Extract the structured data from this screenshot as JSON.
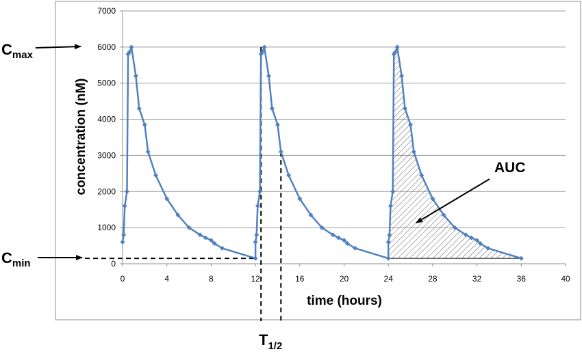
{
  "chart_data": {
    "type": "line",
    "xlabel": "time (hours)",
    "ylabel": "concentration (nM)",
    "xlim": [
      0,
      40
    ],
    "ylim": [
      0,
      7000
    ],
    "x_ticks": [
      0,
      4,
      8,
      12,
      16,
      20,
      24,
      28,
      32,
      36,
      40
    ],
    "y_ticks": [
      0,
      1000,
      2000,
      3000,
      4000,
      5000,
      6000,
      7000
    ],
    "grid": "horizontal",
    "line_color": "#4f81bd",
    "series": [
      {
        "x": [
          0,
          0.1,
          0.2,
          0.4,
          0.5,
          0.6,
          0.8,
          1.2,
          1.5,
          2,
          2.3,
          3,
          4,
          5,
          6,
          7,
          7.5,
          8,
          8.3,
          9,
          12,
          12,
          12.1,
          12.2,
          12.4,
          12.5,
          12.6,
          12.8,
          13.2,
          13.5,
          14,
          14.3,
          15,
          16,
          17,
          18,
          19,
          19.5,
          20,
          20.3,
          21,
          24,
          24,
          24.1,
          24.2,
          24.4,
          24.5,
          24.6,
          24.8,
          25.2,
          25.5,
          26,
          26.3,
          27,
          28,
          29,
          30,
          31,
          31.5,
          32,
          32.3,
          33,
          36
        ],
        "y": [
          600,
          800,
          1600,
          2000,
          5800,
          5850,
          6000,
          5200,
          4300,
          3850,
          3100,
          2450,
          1800,
          1350,
          1000,
          800,
          720,
          650,
          560,
          430,
          150,
          600,
          800,
          1600,
          2000,
          5800,
          5850,
          6000,
          5200,
          4300,
          3850,
          3100,
          2450,
          1800,
          1350,
          1000,
          800,
          720,
          650,
          560,
          430,
          150,
          600,
          800,
          1600,
          2000,
          5800,
          5850,
          6000,
          5200,
          4300,
          3850,
          3100,
          2450,
          1800,
          1350,
          1000,
          800,
          720,
          650,
          560,
          430,
          150
        ]
      }
    ],
    "annotations": {
      "cmax": {
        "main": "C",
        "sub": "max",
        "value": 6000
      },
      "cmin": {
        "main": "C",
        "sub": "min",
        "value": 150
      },
      "t_half": {
        "main": "T",
        "sub": "1/2",
        "from": 12.5,
        "to": 14.3
      },
      "auc": {
        "label": "AUC",
        "from": 24,
        "to": 36
      }
    }
  }
}
